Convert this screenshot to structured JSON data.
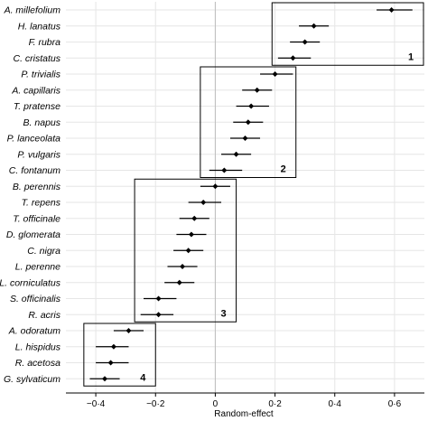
{
  "chart_data": {
    "type": "scatter",
    "subtype": "forest-plot",
    "xlabel": "Random-effect",
    "xlim": [
      -0.5,
      0.7
    ],
    "x_ticks": [
      -0.4,
      -0.2,
      0,
      0.2,
      0.4,
      0.6
    ],
    "x_tick_labels": [
      "−0·4",
      "−0·2",
      "0",
      "0·2",
      "0·4",
      "0·6"
    ],
    "reference_line": 0,
    "grid": true,
    "marker_color": "#000000",
    "grid_color": "#e6e6e6",
    "points": [
      {
        "label": "A. millefolium",
        "value": 0.59,
        "low": 0.54,
        "high": 0.66
      },
      {
        "label": "H. lanatus",
        "value": 0.33,
        "low": 0.28,
        "high": 0.38
      },
      {
        "label": "F. rubra",
        "value": 0.3,
        "low": 0.25,
        "high": 0.35
      },
      {
        "label": "C. cristatus",
        "value": 0.26,
        "low": 0.21,
        "high": 0.32
      },
      {
        "label": "P. trivialis",
        "value": 0.2,
        "low": 0.15,
        "high": 0.26
      },
      {
        "label": "A. capillaris",
        "value": 0.14,
        "low": 0.09,
        "high": 0.19
      },
      {
        "label": "T. pratense",
        "value": 0.12,
        "low": 0.07,
        "high": 0.18
      },
      {
        "label": "B. napus",
        "value": 0.11,
        "low": 0.06,
        "high": 0.16
      },
      {
        "label": "P. lanceolata",
        "value": 0.1,
        "low": 0.05,
        "high": 0.15
      },
      {
        "label": "P. vulgaris",
        "value": 0.07,
        "low": 0.02,
        "high": 0.12
      },
      {
        "label": "C. fontanum",
        "value": 0.03,
        "low": -0.02,
        "high": 0.09
      },
      {
        "label": "B. perennis",
        "value": 0.0,
        "low": -0.05,
        "high": 0.05
      },
      {
        "label": "T. repens",
        "value": -0.04,
        "low": -0.09,
        "high": 0.02
      },
      {
        "label": "T. officinale",
        "value": -0.07,
        "low": -0.12,
        "high": -0.02
      },
      {
        "label": "D. glomerata",
        "value": -0.08,
        "low": -0.13,
        "high": -0.03
      },
      {
        "label": "C. nigra",
        "value": -0.09,
        "low": -0.14,
        "high": -0.04
      },
      {
        "label": "L. perenne",
        "value": -0.11,
        "low": -0.16,
        "high": -0.06
      },
      {
        "label": "L. corniculatus",
        "value": -0.12,
        "low": -0.17,
        "high": -0.07
      },
      {
        "label": "S. officinalis",
        "value": -0.19,
        "low": -0.24,
        "high": -0.13
      },
      {
        "label": "R. acris",
        "value": -0.19,
        "low": -0.25,
        "high": -0.14
      },
      {
        "label": "A. odoratum",
        "value": -0.29,
        "low": -0.34,
        "high": -0.24
      },
      {
        "label": "L. hispidus",
        "value": -0.34,
        "low": -0.4,
        "high": -0.29
      },
      {
        "label": "R. acetosa",
        "value": -0.35,
        "low": -0.4,
        "high": -0.29
      },
      {
        "label": "G. sylvaticum",
        "value": -0.37,
        "low": -0.42,
        "high": -0.32
      }
    ],
    "groups": [
      {
        "label": "1",
        "first": 0,
        "last": 3,
        "x_from": 0.19,
        "x_to": 0.7
      },
      {
        "label": "2",
        "first": 4,
        "last": 10,
        "x_from": -0.05,
        "x_to": 0.27
      },
      {
        "label": "3",
        "first": 11,
        "last": 19,
        "x_from": -0.27,
        "x_to": 0.07
      },
      {
        "label": "4",
        "first": 20,
        "last": 23,
        "x_from": -0.44,
        "x_to": -0.2
      }
    ]
  }
}
